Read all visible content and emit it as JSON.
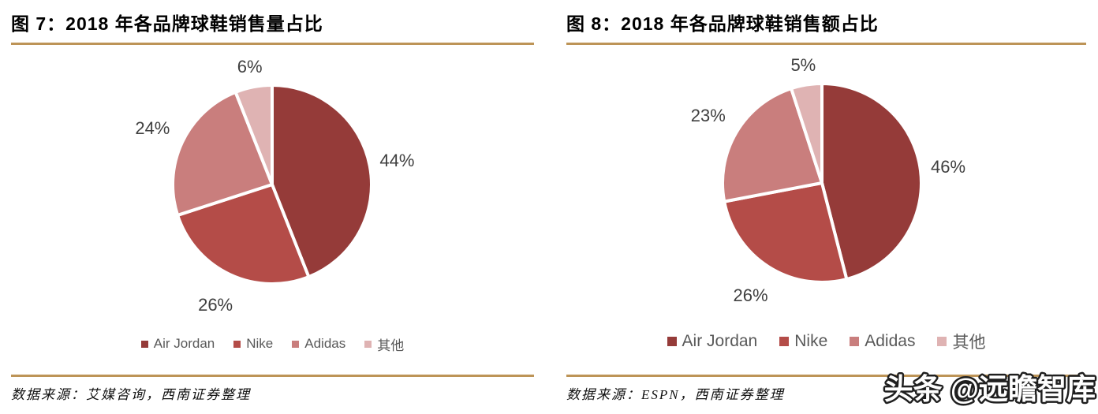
{
  "colors": {
    "accent_line": "#BD9457",
    "title_text": "#000000",
    "value_label_text": "#3F3F3F",
    "legend_text": "#595959",
    "watermark_fill": "#FFFFFF",
    "watermark_stroke": "#1F1F1F",
    "series": [
      "#953B39",
      "#B44C48",
      "#C97E7D",
      "#DFB3B3"
    ]
  },
  "figures": [
    {
      "title": "图 7：2018 年各品牌球鞋销售量占比",
      "source": "数据来源：艾媒咨询，西南证券整理",
      "legend": [
        "Air Jordan",
        "Nike",
        "Adidas",
        "其他"
      ]
    },
    {
      "title": "图 8：2018 年各品牌球鞋销售额占比",
      "source": "数据来源：ESPN，西南证券整理",
      "legend": [
        "Air Jordan",
        "Nike",
        "Adidas",
        "其他"
      ]
    }
  ],
  "watermark": {
    "text": "头条 @远瞻智库"
  },
  "chart_data": [
    {
      "type": "pie",
      "title": "2018 年各品牌球鞋销售量占比",
      "labels": [
        "Air Jordan",
        "Nike",
        "Adidas",
        "其他"
      ],
      "values": [
        44,
        26,
        24,
        6
      ],
      "unit": "%",
      "value_labels": [
        "44%",
        "26%",
        "24%",
        "6%"
      ],
      "colors": [
        "#953B39",
        "#B44C48",
        "#C97E7D",
        "#DFB3B3"
      ],
      "start_angle_deg": 0,
      "direction": "clockwise",
      "legend_position": "bottom"
    },
    {
      "type": "pie",
      "title": "2018 年各品牌球鞋销售额占比",
      "labels": [
        "Air Jordan",
        "Nike",
        "Adidas",
        "其他"
      ],
      "values": [
        46,
        26,
        23,
        5
      ],
      "unit": "%",
      "value_labels": [
        "46%",
        "26%",
        "23%",
        "5%"
      ],
      "colors": [
        "#953B39",
        "#B44C48",
        "#C97E7D",
        "#DFB3B3"
      ],
      "start_angle_deg": 0,
      "direction": "clockwise",
      "legend_position": "bottom"
    }
  ]
}
